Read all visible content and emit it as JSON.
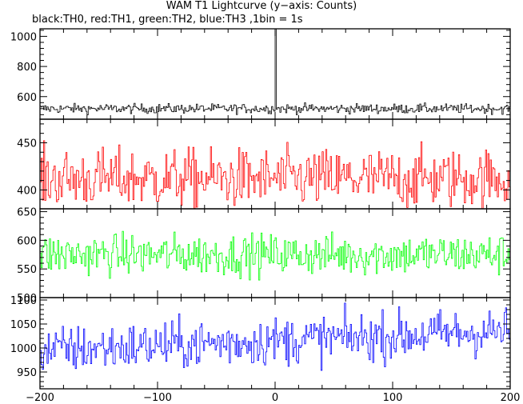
{
  "title": "WAM T1 Lightcurve (y−axis: Counts)",
  "subtitle": "black:TH0, red:TH1, green:TH2, blue:TH3 ,1bin = 1s",
  "chart_data": {
    "type": "line",
    "x_range": [
      -200,
      200
    ],
    "x_ticks": [
      -200,
      -100,
      0,
      100,
      200
    ],
    "x_tick_labels": [
      "−200",
      "−100",
      "0",
      "100",
      "200"
    ],
    "bin_seconds": 1,
    "panels": [
      {
        "series": "TH0",
        "color": "#000000",
        "ylim": [
          450,
          1050
        ],
        "y_ticks": [
          600,
          800,
          1000
        ],
        "y_tick_labels": [
          "600",
          "800",
          "1000"
        ],
        "baseline": 520,
        "noise": 22,
        "spike": {
          "x": 0,
          "value": 1050
        }
      },
      {
        "series": "TH1",
        "color": "#ff0000",
        "ylim": [
          380,
          475
        ],
        "y_ticks": [
          400,
          450
        ],
        "y_tick_labels": [
          "400",
          "450"
        ],
        "baseline": 412,
        "noise": 22
      },
      {
        "series": "TH2",
        "color": "#00ff00",
        "ylim": [
          500,
          655
        ],
        "y_ticks": [
          500,
          550,
          600,
          650
        ],
        "y_tick_labels": [
          "500",
          "550",
          "600",
          "650"
        ],
        "baseline": 575,
        "noise": 25
      },
      {
        "series": "TH3",
        "color": "#0000ff",
        "ylim": [
          915,
          1105
        ],
        "y_ticks": [
          950,
          1000,
          1050,
          1100
        ],
        "y_tick_labels": [
          "950",
          "1000",
          "1050",
          "1100"
        ],
        "baseline": 995,
        "trend_end": 1035,
        "noise": 35
      }
    ]
  }
}
